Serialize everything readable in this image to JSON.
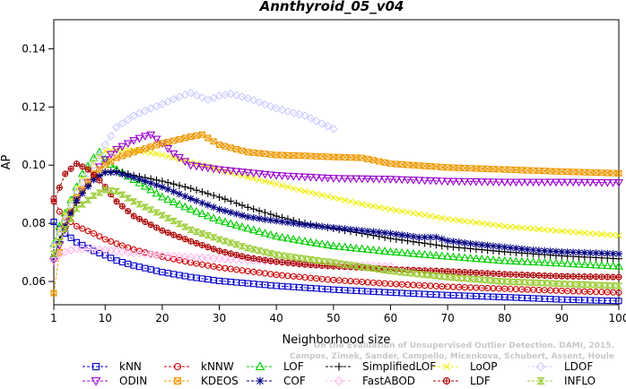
{
  "chart_data": {
    "type": "line",
    "title": "Annthyroid_05_v04",
    "xlabel": "Neighborhood size",
    "ylabel": "AP",
    "xlim": [
      1,
      100
    ],
    "ylim": [
      0.052,
      0.15
    ],
    "x_ticks": [
      1,
      10,
      20,
      30,
      40,
      50,
      60,
      70,
      80,
      90,
      100
    ],
    "x_tick_labels": [
      "1",
      "10",
      "20",
      "30",
      "40",
      "50",
      "60",
      "70",
      "80",
      "90",
      "100"
    ],
    "y_ticks": [
      0.06,
      0.08,
      0.1,
      0.12,
      0.14
    ],
    "y_tick_labels": [
      "0.06",
      "0.08",
      "0.10",
      "0.12",
      "0.14"
    ],
    "grid": false,
    "legend_position": "bottom",
    "credit": [
      "Campos, Zimek, Sander, Campello, Micenkova, Schubert, Assent, Houle",
      "On the Evaluation of Unsupervised Outlier Detection. DAMI, 2015."
    ],
    "series": [
      {
        "name": "kNN",
        "color": "#0000cc",
        "marker": "square",
        "points": [
          [
            1,
            0.0805
          ],
          [
            2,
            0.078
          ],
          [
            3,
            0.0765
          ],
          [
            5,
            0.0735
          ],
          [
            8,
            0.0705
          ],
          [
            10,
            0.069
          ],
          [
            12,
            0.0672
          ],
          [
            15,
            0.0655
          ],
          [
            20,
            0.0632
          ],
          [
            25,
            0.0615
          ],
          [
            30,
            0.0602
          ],
          [
            40,
            0.0585
          ],
          [
            50,
            0.0572
          ],
          [
            60,
            0.0562
          ],
          [
            70,
            0.0553
          ],
          [
            80,
            0.0546
          ],
          [
            90,
            0.0538
          ],
          [
            100,
            0.0533
          ]
        ]
      },
      {
        "name": "kNNW",
        "color": "#cc0000",
        "marker": "circle",
        "points": [
          [
            1,
            0.0885
          ],
          [
            2,
            0.084
          ],
          [
            3,
            0.082
          ],
          [
            5,
            0.079
          ],
          [
            8,
            0.0765
          ],
          [
            10,
            0.0745
          ],
          [
            12,
            0.073
          ],
          [
            15,
            0.071
          ],
          [
            20,
            0.0685
          ],
          [
            25,
            0.0665
          ],
          [
            30,
            0.0648
          ],
          [
            40,
            0.0623
          ],
          [
            50,
            0.0605
          ],
          [
            60,
            0.0592
          ],
          [
            70,
            0.0582
          ],
          [
            80,
            0.0575
          ],
          [
            90,
            0.0568
          ],
          [
            100,
            0.0562
          ]
        ]
      },
      {
        "name": "LOF",
        "color": "#00cc00",
        "marker": "triangle-up",
        "points": [
          [
            1,
            0.073
          ],
          [
            2,
            0.079
          ],
          [
            4,
            0.088
          ],
          [
            6,
            0.097
          ],
          [
            8,
            0.1025
          ],
          [
            9,
            0.1045
          ],
          [
            10,
            0.102
          ],
          [
            12,
            0.0985
          ],
          [
            15,
            0.095
          ],
          [
            18,
            0.0915
          ],
          [
            20,
            0.089
          ],
          [
            25,
            0.0848
          ],
          [
            30,
            0.081
          ],
          [
            35,
            0.0782
          ],
          [
            40,
            0.0755
          ],
          [
            45,
            0.0738
          ],
          [
            50,
            0.0722
          ],
          [
            60,
            0.0702
          ],
          [
            70,
            0.0686
          ],
          [
            80,
            0.0671
          ],
          [
            90,
            0.0662
          ],
          [
            100,
            0.0652
          ]
        ]
      },
      {
        "name": "SimplifiedLOF",
        "color": "#000000",
        "marker": "plus",
        "points": [
          [
            1,
            0.0675
          ],
          [
            2,
            0.0745
          ],
          [
            4,
            0.0835
          ],
          [
            6,
            0.0905
          ],
          [
            8,
            0.0955
          ],
          [
            10,
            0.0975
          ],
          [
            12,
            0.098
          ],
          [
            15,
            0.0965
          ],
          [
            20,
            0.0945
          ],
          [
            25,
            0.092
          ],
          [
            30,
            0.089
          ],
          [
            35,
            0.0855
          ],
          [
            40,
            0.0825
          ],
          [
            45,
            0.08
          ],
          [
            50,
            0.0782
          ],
          [
            55,
            0.0765
          ],
          [
            60,
            0.0748
          ],
          [
            70,
            0.072
          ],
          [
            80,
            0.0702
          ],
          [
            90,
            0.0688
          ],
          [
            100,
            0.0678
          ]
        ]
      },
      {
        "name": "LoOP",
        "color": "#eeee00",
        "marker": "x",
        "points": [
          [
            1,
            0.0725
          ],
          [
            3,
            0.083
          ],
          [
            5,
            0.092
          ],
          [
            7,
            0.0985
          ],
          [
            9,
            0.103
          ],
          [
            10,
            0.1048
          ],
          [
            12,
            0.1052
          ],
          [
            15,
            0.1052
          ],
          [
            20,
            0.1035
          ],
          [
            25,
            0.101
          ],
          [
            30,
            0.0985
          ],
          [
            35,
            0.0958
          ],
          [
            40,
            0.0935
          ],
          [
            45,
            0.091
          ],
          [
            50,
            0.0888
          ],
          [
            55,
            0.0866
          ],
          [
            60,
            0.0848
          ],
          [
            70,
            0.0815
          ],
          [
            80,
            0.079
          ],
          [
            90,
            0.0773
          ],
          [
            100,
            0.0758
          ]
        ]
      },
      {
        "name": "LDOF",
        "color": "#ccccff",
        "marker": "diamond",
        "points": [
          [
            1,
            0.0725
          ],
          [
            3,
            0.0815
          ],
          [
            5,
            0.091
          ],
          [
            8,
            0.1
          ],
          [
            10,
            0.107
          ],
          [
            12,
            0.113
          ],
          [
            15,
            0.117
          ],
          [
            18,
            0.1195
          ],
          [
            20,
            0.121
          ],
          [
            23,
            0.1235
          ],
          [
            25,
            0.1248
          ],
          [
            28,
            0.1225
          ],
          [
            30,
            0.1238
          ],
          [
            32,
            0.1245
          ],
          [
            35,
            0.123
          ],
          [
            40,
            0.1195
          ],
          [
            45,
            0.117
          ],
          [
            50,
            0.1125
          ]
        ]
      },
      {
        "name": "ODIN",
        "color": "#9900cc",
        "marker": "triangle-down",
        "points": [
          [
            1,
            0.067
          ],
          [
            3,
            0.078
          ],
          [
            5,
            0.088
          ],
          [
            8,
            0.097
          ],
          [
            10,
            0.102
          ],
          [
            12,
            0.1055
          ],
          [
            15,
            0.1085
          ],
          [
            17,
            0.11
          ],
          [
            18,
            0.1105
          ],
          [
            20,
            0.1075
          ],
          [
            22,
            0.104
          ],
          [
            25,
            0.1
          ],
          [
            30,
            0.0985
          ],
          [
            40,
            0.0965
          ],
          [
            50,
            0.0955
          ],
          [
            60,
            0.0952
          ],
          [
            70,
            0.0945
          ],
          [
            80,
            0.0942
          ],
          [
            90,
            0.0942
          ],
          [
            100,
            0.094
          ]
        ]
      },
      {
        "name": "KDEOS",
        "color": "#ee9900",
        "marker": "square-x",
        "points": [
          [
            1,
            0.056
          ],
          [
            2,
            0.07
          ],
          [
            3,
            0.079
          ],
          [
            5,
            0.089
          ],
          [
            8,
            0.097
          ],
          [
            10,
            0.1
          ],
          [
            12,
            0.1025
          ],
          [
            15,
            0.1045
          ],
          [
            20,
            0.1075
          ],
          [
            25,
            0.1098
          ],
          [
            27,
            0.1105
          ],
          [
            30,
            0.107
          ],
          [
            35,
            0.1045
          ],
          [
            40,
            0.1035
          ],
          [
            45,
            0.1032
          ],
          [
            50,
            0.1028
          ],
          [
            55,
            0.1025
          ],
          [
            60,
            0.1005
          ],
          [
            70,
            0.0992
          ],
          [
            80,
            0.0985
          ],
          [
            90,
            0.0978
          ],
          [
            100,
            0.0972
          ]
        ]
      },
      {
        "name": "COF",
        "color": "#000080",
        "marker": "asterisk",
        "points": [
          [
            1,
            0.0685
          ],
          [
            3,
            0.079
          ],
          [
            5,
            0.088
          ],
          [
            8,
            0.095
          ],
          [
            10,
            0.0975
          ],
          [
            12,
            0.0975
          ],
          [
            15,
            0.0958
          ],
          [
            20,
            0.0925
          ],
          [
            25,
            0.0885
          ],
          [
            30,
            0.0848
          ],
          [
            35,
            0.0822
          ],
          [
            40,
            0.0808
          ],
          [
            45,
            0.0795
          ],
          [
            50,
            0.0785
          ],
          [
            55,
            0.0775
          ],
          [
            60,
            0.0765
          ],
          [
            65,
            0.0752
          ],
          [
            68,
            0.0752
          ],
          [
            70,
            0.074
          ],
          [
            75,
            0.0728
          ],
          [
            80,
            0.0718
          ],
          [
            85,
            0.0708
          ],
          [
            90,
            0.0702
          ],
          [
            100,
            0.0695
          ]
        ]
      },
      {
        "name": "FastABOD",
        "color": "#ffbbee",
        "marker": "diamond",
        "points": [
          [
            1,
            0.0672
          ],
          [
            2,
            0.0692
          ],
          [
            3,
            0.0702
          ],
          [
            5,
            0.0712
          ],
          [
            8,
            0.0712
          ],
          [
            10,
            0.0708
          ],
          [
            15,
            0.0698
          ],
          [
            20,
            0.069
          ],
          [
            30,
            0.0678
          ],
          [
            40,
            0.0668
          ],
          [
            50,
            0.0658
          ],
          [
            60,
            0.0652
          ]
        ]
      },
      {
        "name": "LDF",
        "color": "#aa0000",
        "marker": "circle-plus",
        "points": [
          [
            1,
            0.0875
          ],
          [
            3,
            0.097
          ],
          [
            5,
            0.1005
          ],
          [
            7,
            0.0985
          ],
          [
            9,
            0.0948
          ],
          [
            10,
            0.0925
          ],
          [
            12,
            0.0875
          ],
          [
            15,
            0.0825
          ],
          [
            20,
            0.0775
          ],
          [
            25,
            0.0738
          ],
          [
            30,
            0.0705
          ],
          [
            35,
            0.0682
          ],
          [
            40,
            0.0668
          ],
          [
            45,
            0.0658
          ],
          [
            50,
            0.0652
          ],
          [
            55,
            0.0648
          ],
          [
            60,
            0.0642
          ],
          [
            70,
            0.0635
          ],
          [
            80,
            0.0625
          ],
          [
            90,
            0.0618
          ],
          [
            100,
            0.0615
          ]
        ]
      },
      {
        "name": "INFLO",
        "color": "#99cc33",
        "marker": "hourglass",
        "points": [
          [
            1,
            0.0695
          ],
          [
            3,
            0.078
          ],
          [
            5,
            0.085
          ],
          [
            8,
            0.0895
          ],
          [
            10,
            0.0915
          ],
          [
            12,
            0.091
          ],
          [
            15,
            0.0875
          ],
          [
            20,
            0.0828
          ],
          [
            25,
            0.0778
          ],
          [
            30,
            0.0745
          ],
          [
            35,
            0.0715
          ],
          [
            40,
            0.0692
          ],
          [
            45,
            0.0678
          ],
          [
            50,
            0.0665
          ],
          [
            55,
            0.065
          ],
          [
            60,
            0.0636
          ],
          [
            70,
            0.0615
          ],
          [
            80,
            0.06
          ],
          [
            90,
            0.0592
          ],
          [
            100,
            0.0585
          ]
        ]
      }
    ]
  }
}
